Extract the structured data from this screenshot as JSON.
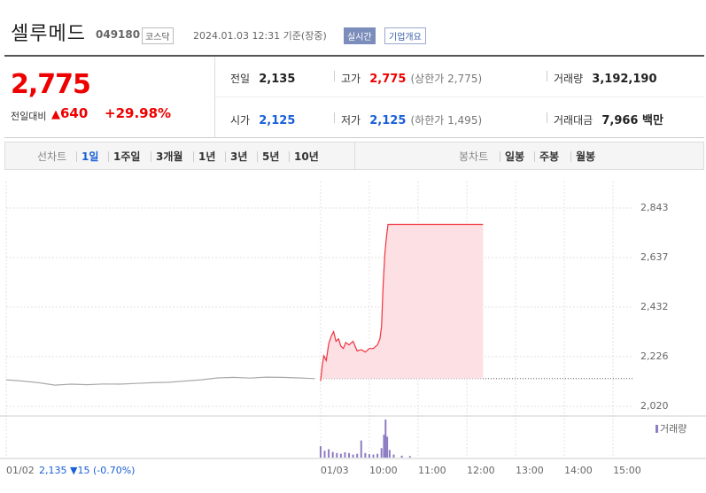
{
  "header": {
    "title": "셀루메드",
    "code": "049180",
    "market": "코스닥",
    "timestamp": "2024.01.03 12:31 기준(장중)",
    "realtime": "실시간",
    "company_info": "기업개요"
  },
  "summary": {
    "price": "2,775",
    "change_label": "전일대비",
    "change": "640",
    "change_rate": "+29.98%",
    "stats": [
      {
        "label": "전일",
        "value": "2,135"
      },
      {
        "label": "고가",
        "value": "2,775",
        "note": "(상한가 2,775)"
      },
      {
        "label": "거래량",
        "value": "3,192,190"
      },
      {
        "label": "시가",
        "value": "2,125"
      },
      {
        "label": "저가",
        "value": "2,125",
        "note": "(하한가 1,495)"
      },
      {
        "label": "거래대금",
        "value": "7,966 백만"
      }
    ]
  },
  "tabs": {
    "line_chart": "선차트",
    "periods": [
      "1일",
      "1주일",
      "3개월",
      "1년",
      "3년",
      "5년",
      "10년"
    ],
    "candle_chart": "봉차트",
    "candles": [
      "일봉",
      "주봉",
      "월봉"
    ]
  },
  "chart_data": {
    "type": "line",
    "xlim": [
      -387,
      385
    ],
    "ylim": [
      1991,
      2953
    ],
    "xticks": [
      {
        "value": -387,
        "label": "01/02"
      },
      {
        "value": 0,
        "label": "01/03"
      },
      {
        "value": 60,
        "label": "10:00"
      },
      {
        "value": 120,
        "label": "11:00"
      },
      {
        "value": 180,
        "label": "12:00"
      },
      {
        "value": 240,
        "label": "13:00"
      },
      {
        "value": 300,
        "label": "14:00"
      },
      {
        "value": 360,
        "label": "15:00"
      }
    ],
    "yticks": [
      {
        "value": 2020,
        "label": "2,020"
      },
      {
        "value": 2226,
        "label": "2,226"
      },
      {
        "value": 2432,
        "label": "2,432"
      },
      {
        "value": 2637,
        "label": "2,637"
      },
      {
        "value": 2843,
        "label": "2,843"
      }
    ],
    "grid": true,
    "reference_line": 2135,
    "series": [
      {
        "color": "#aaaaaa",
        "x": [
          -387,
          -367,
          -347,
          -327,
          -307,
          -287,
          -267,
          -247,
          -227,
          -207,
          -187,
          -167,
          -147,
          -127,
          -107,
          -87,
          -67,
          -47,
          -27,
          -7
        ],
        "values": [
          2130,
          2125,
          2118,
          2108,
          2112,
          2110,
          2113,
          2112,
          2115,
          2118,
          2120,
          2125,
          2130,
          2138,
          2140,
          2137,
          2141,
          2140,
          2138,
          2135
        ]
      },
      {
        "color": "#f0323c",
        "fill": "#fde0e3",
        "x": [
          0,
          2,
          4,
          7,
          10,
          13,
          16,
          19,
          22,
          25,
          28,
          31,
          35,
          40,
          45,
          50,
          55,
          60,
          65,
          70,
          73,
          75,
          77,
          79,
          81,
          83,
          200
        ],
        "values": [
          2125,
          2190,
          2230,
          2210,
          2280,
          2310,
          2330,
          2290,
          2300,
          2270,
          2260,
          2285,
          2275,
          2290,
          2250,
          2255,
          2245,
          2260,
          2260,
          2275,
          2300,
          2350,
          2520,
          2650,
          2720,
          2775,
          2775
        ]
      }
    ],
    "volume": {
      "label": "거래량",
      "color": "#8e7cc3",
      "ylim": [
        0,
        100
      ],
      "x": [
        0,
        5,
        10,
        15,
        20,
        25,
        30,
        35,
        40,
        45,
        50,
        55,
        60,
        65,
        70,
        75,
        78,
        80,
        82,
        85,
        90,
        100,
        110
      ],
      "values": [
        30,
        18,
        22,
        15,
        12,
        10,
        14,
        12,
        8,
        10,
        45,
        12,
        9,
        8,
        10,
        25,
        60,
        100,
        55,
        20,
        8,
        5,
        4
      ]
    }
  },
  "footer": {
    "close": "2,135",
    "change": "▼15",
    "rate": "(-0.70%)"
  }
}
